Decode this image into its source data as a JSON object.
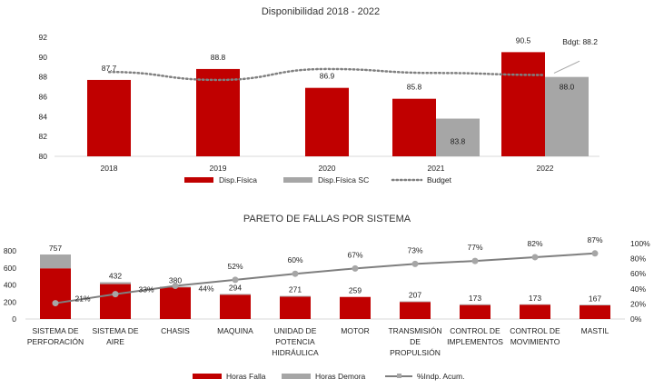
{
  "chart_data": [
    {
      "type": "bar",
      "title": "Disponibilidad 2018 - 2022",
      "categories": [
        "2018",
        "2019",
        "2020",
        "2021",
        "2022"
      ],
      "ylim": [
        80,
        92
      ],
      "yticks": [
        "80",
        "82",
        "84",
        "86",
        "88",
        "90",
        "92"
      ],
      "series": [
        {
          "name": "Disp.Física",
          "color": "#c00000",
          "values": [
            87.7,
            88.8,
            86.9,
            85.8,
            90.5
          ],
          "labels": [
            "87.7",
            "88.8",
            "86.9",
            "85.8",
            "90.5"
          ]
        },
        {
          "name": "Disp.Física SC",
          "color": "#a6a6a6",
          "values": [
            null,
            null,
            null,
            83.8,
            88.0
          ],
          "labels": [
            "",
            "",
            "",
            "83.8",
            "88.0"
          ]
        },
        {
          "name": "Budget",
          "type": "line",
          "style": "dotted",
          "color": "#808080",
          "values": [
            88.5,
            87.7,
            88.8,
            88.4,
            88.2
          ]
        }
      ],
      "annotation": "Bdgt: 88.2",
      "legend": "bottom",
      "grid": false
    },
    {
      "type": "bar",
      "title": "PARETO DE FALLAS POR SISTEMA",
      "categories": [
        [
          "SISTEMA DE",
          "PERFORACIÓN"
        ],
        [
          "SISTEMA DE",
          "AIRE"
        ],
        [
          "CHASIS"
        ],
        [
          "MAQUINA"
        ],
        [
          "UNIDAD DE",
          "POTENCIA",
          "HIDRÁULICA"
        ],
        [
          "MOTOR"
        ],
        [
          "TRANSMISIÓN",
          "DE",
          "PROPULSIÓN"
        ],
        [
          "CONTROL DE",
          "IMPLEMENTOS"
        ],
        [
          "CONTROL DE",
          "MOVIMIENTO"
        ],
        [
          "MASTIL"
        ]
      ],
      "ylim_left": [
        0,
        800
      ],
      "yticks_left": [
        "0",
        "200",
        "400",
        "600",
        "800"
      ],
      "ylim_right": [
        0,
        100
      ],
      "yticks_right": [
        "0%",
        "20%",
        "40%",
        "60%",
        "80%",
        "100%"
      ],
      "totals": [
        "757",
        "432",
        "380",
        "294",
        "271",
        "259",
        "207",
        "173",
        "173",
        "167"
      ],
      "series": [
        {
          "name": "Horas Falla",
          "color": "#c00000",
          "values": [
            595,
            410,
            372,
            285,
            262,
            259,
            200,
            164,
            168,
            160
          ]
        },
        {
          "name": "Horas Demora",
          "color": "#a6a6a6",
          "values": [
            162,
            22,
            8,
            9,
            9,
            0,
            7,
            9,
            5,
            7
          ]
        },
        {
          "name": "%Indp. Acum.",
          "type": "line",
          "axis": "right",
          "color": "#7f7f7f",
          "values": [
            21,
            33,
            44,
            52,
            60,
            67,
            73,
            77,
            82,
            87
          ],
          "labels": [
            "21%",
            "33%",
            "44%",
            "52%",
            "60%",
            "67%",
            "73%",
            "77%",
            "82%",
            "87%"
          ]
        }
      ],
      "legend": "bottom",
      "grid": false
    }
  ]
}
